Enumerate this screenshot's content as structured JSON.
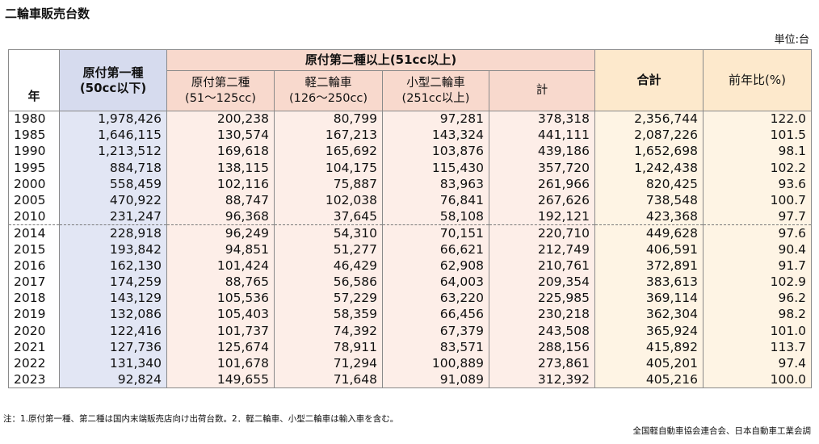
{
  "title": "二輪車販売台数",
  "unit": "単位:台",
  "chart_data": {
    "type": "table",
    "header": {
      "year": "年",
      "gen1_line1": "原付第一種",
      "gen1_line2": "(50cc以下)",
      "group": "原付第二種以上(51cc以上)",
      "gen2_line1": "原付第二種",
      "gen2_line2": "(51〜125cc)",
      "light_line1": "軽二輪車",
      "light_line2": "(126〜250cc)",
      "small_line1": "小型二輪車",
      "small_line2": "(251cc以上)",
      "subtotal": "計",
      "total": "合計",
      "yoy": "前年比(%)"
    },
    "rows": [
      {
        "year": "1980",
        "gen1": "1,978,426",
        "gen2": "200,238",
        "light": "80,799",
        "small": "97,281",
        "subtotal": "378,318",
        "total": "2,356,744",
        "yoy": "122.0"
      },
      {
        "year": "1985",
        "gen1": "1,646,115",
        "gen2": "130,574",
        "light": "167,213",
        "small": "143,324",
        "subtotal": "441,111",
        "total": "2,087,226",
        "yoy": "101.5"
      },
      {
        "year": "1990",
        "gen1": "1,213,512",
        "gen2": "169,618",
        "light": "165,692",
        "small": "103,876",
        "subtotal": "439,186",
        "total": "1,652,698",
        "yoy": "98.1"
      },
      {
        "year": "1995",
        "gen1": "884,718",
        "gen2": "138,115",
        "light": "104,175",
        "small": "115,430",
        "subtotal": "357,720",
        "total": "1,242,438",
        "yoy": "102.2"
      },
      {
        "year": "2000",
        "gen1": "558,459",
        "gen2": "102,116",
        "light": "75,887",
        "small": "83,963",
        "subtotal": "261,966",
        "total": "820,425",
        "yoy": "93.6"
      },
      {
        "year": "2005",
        "gen1": "470,922",
        "gen2": "88,747",
        "light": "102,038",
        "small": "76,841",
        "subtotal": "267,626",
        "total": "738,548",
        "yoy": "100.7"
      },
      {
        "year": "2010",
        "gen1": "231,247",
        "gen2": "96,368",
        "light": "37,645",
        "small": "58,108",
        "subtotal": "192,121",
        "total": "423,368",
        "yoy": "97.7"
      },
      {
        "year": "2014",
        "gen1": "228,918",
        "gen2": "96,249",
        "light": "54,310",
        "small": "70,151",
        "subtotal": "220,710",
        "total": "449,628",
        "yoy": "97.6"
      },
      {
        "year": "2015",
        "gen1": "193,842",
        "gen2": "94,851",
        "light": "51,277",
        "small": "66,621",
        "subtotal": "212,749",
        "total": "406,591",
        "yoy": "90.4"
      },
      {
        "year": "2016",
        "gen1": "162,130",
        "gen2": "101,424",
        "light": "46,429",
        "small": "62,908",
        "subtotal": "210,761",
        "total": "372,891",
        "yoy": "91.7"
      },
      {
        "year": "2017",
        "gen1": "174,259",
        "gen2": "88,765",
        "light": "56,586",
        "small": "64,003",
        "subtotal": "209,354",
        "total": "383,613",
        "yoy": "102.9"
      },
      {
        "year": "2018",
        "gen1": "143,129",
        "gen2": "105,536",
        "light": "57,229",
        "small": "63,220",
        "subtotal": "225,985",
        "total": "369,114",
        "yoy": "96.2"
      },
      {
        "year": "2019",
        "gen1": "132,086",
        "gen2": "105,403",
        "light": "58,359",
        "small": "66,456",
        "subtotal": "230,218",
        "total": "362,304",
        "yoy": "98.2"
      },
      {
        "year": "2020",
        "gen1": "122,416",
        "gen2": "101,737",
        "light": "74,392",
        "small": "67,379",
        "subtotal": "243,508",
        "total": "365,924",
        "yoy": "101.0"
      },
      {
        "year": "2021",
        "gen1": "127,736",
        "gen2": "125,674",
        "light": "78,911",
        "small": "83,571",
        "subtotal": "288,156",
        "total": "415,892",
        "yoy": "113.7"
      },
      {
        "year": "2022",
        "gen1": "131,340",
        "gen2": "101,678",
        "light": "71,294",
        "small": "100,889",
        "subtotal": "273,861",
        "total": "405,201",
        "yoy": "97.4"
      },
      {
        "year": "2023",
        "gen1": "92,824",
        "gen2": "149,655",
        "light": "71,648",
        "small": "91,089",
        "subtotal": "312,392",
        "total": "405,216",
        "yoy": "100.0"
      }
    ]
  },
  "note": "注：1.原付第一種、第二種は国内末端販売店向け出荷台数。2．軽二輪車、小型二輪車は輸入車を含む。",
  "source": "全国軽自動車協会連合会、日本自動車工業会調"
}
